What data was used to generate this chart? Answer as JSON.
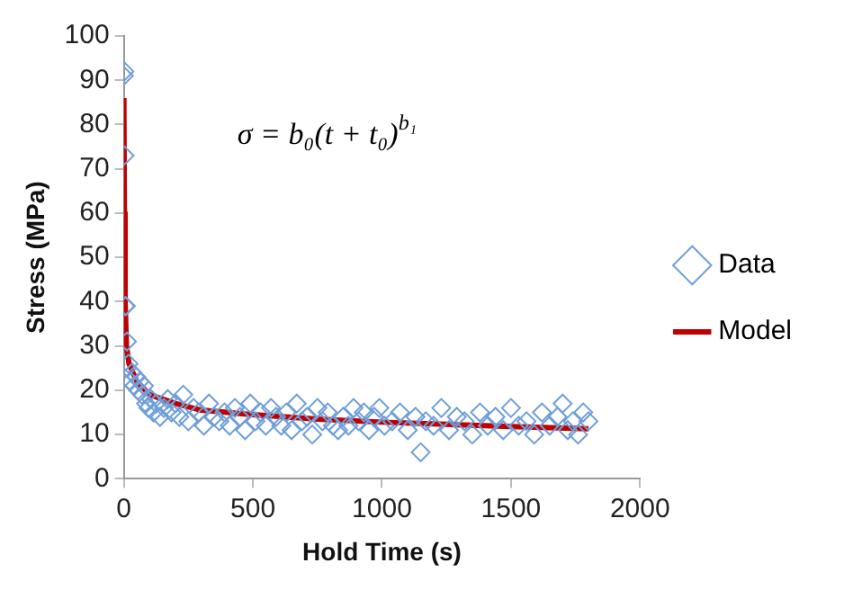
{
  "chart_data": {
    "type": "scatter",
    "xlabel": "Hold Time (s)",
    "ylabel": "Stress (MPa)",
    "xlim": [
      0,
      2000
    ],
    "xticks": [
      0,
      500,
      1000,
      1500,
      2000
    ],
    "ylim": [
      0,
      100
    ],
    "yticks": [
      0,
      10,
      20,
      30,
      40,
      50,
      60,
      70,
      80,
      90,
      100
    ],
    "grid": false,
    "legend": "right",
    "annotations": [
      "σ = b₀(t + t₀)$^{b₁}$"
    ],
    "series": [
      {
        "name": "Data",
        "type": "scatter",
        "marker": "diamond",
        "color": "#6f9fd8",
        "x": [
          0,
          2,
          3,
          5,
          8,
          12,
          18,
          25,
          32,
          40,
          48,
          55,
          62,
          70,
          78,
          86,
          95,
          105,
          115,
          125,
          140,
          155,
          170,
          185,
          200,
          215,
          230,
          250,
          270,
          290,
          310,
          330,
          350,
          370,
          390,
          410,
          430,
          450,
          470,
          490,
          510,
          530,
          550,
          570,
          590,
          610,
          630,
          650,
          670,
          690,
          710,
          730,
          750,
          770,
          790,
          810,
          830,
          850,
          870,
          890,
          910,
          930,
          950,
          970,
          990,
          1010,
          1040,
          1070,
          1100,
          1130,
          1150,
          1170,
          1200,
          1230,
          1260,
          1290,
          1320,
          1350,
          1380,
          1410,
          1440,
          1470,
          1500,
          1530,
          1560,
          1590,
          1620,
          1650,
          1680,
          1700,
          1720,
          1740,
          1760,
          1780,
          1800
        ],
        "values": [
          91,
          92,
          73,
          39,
          39,
          31,
          26,
          22,
          24,
          21,
          23,
          20,
          22,
          19,
          21,
          17,
          16,
          18,
          15,
          17,
          14,
          16,
          18,
          15,
          17,
          14,
          19,
          13,
          16,
          15,
          12,
          17,
          14,
          13,
          15,
          12,
          16,
          14,
          11,
          17,
          13,
          15,
          12,
          16,
          14,
          12,
          15,
          11,
          17,
          13,
          14,
          10,
          16,
          13,
          15,
          12,
          11,
          14,
          12,
          16,
          13,
          15,
          11,
          14,
          16,
          12,
          13,
          15,
          11,
          14,
          6,
          13,
          12,
          16,
          11,
          14,
          13,
          10,
          15,
          12,
          14,
          11,
          16,
          12,
          13,
          10,
          15,
          12,
          14,
          17,
          11,
          13,
          10,
          15,
          13
        ]
      },
      {
        "name": "Model",
        "type": "line",
        "marker": "none",
        "color": "#c00000",
        "x": [
          0,
          2,
          5,
          10,
          20,
          50,
          100,
          200,
          300,
          500,
          750,
          1000,
          1250,
          1500,
          1800
        ],
        "values": [
          86,
          60,
          40,
          30,
          26,
          22,
          19,
          17,
          15.5,
          14.5,
          13.5,
          12.8,
          12.3,
          11.8,
          11.3
        ]
      }
    ]
  }
}
